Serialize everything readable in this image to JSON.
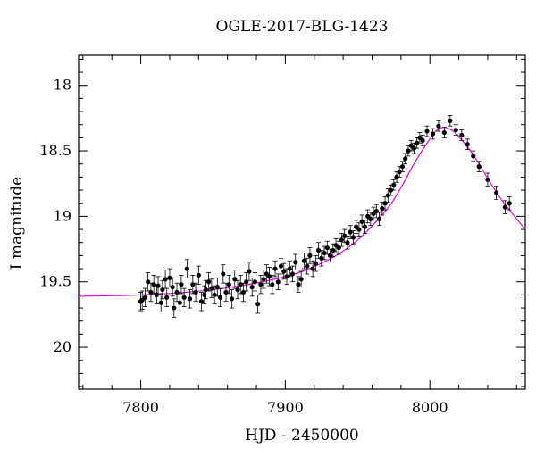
{
  "chart_data": {
    "type": "scatter",
    "title": "OGLE-2017-BLG-1423",
    "xlabel": "HJD - 2450000",
    "ylabel": "I magnitude",
    "xlim": [
      7757,
      8066
    ],
    "ylim": [
      20.32,
      17.77
    ],
    "y_inverted": true,
    "grid": false,
    "xticks": [
      7800,
      7900,
      8000
    ],
    "xtick_labels": [
      "7800",
      "7900",
      "8000"
    ],
    "yticks": [
      18,
      18.5,
      19,
      19.5,
      20
    ],
    "ytick_labels": [
      "18",
      "18.5",
      "19",
      "19.5",
      "20"
    ],
    "colors": {
      "points": "#000000",
      "model": "#e600e6"
    },
    "model": {
      "x": [
        7757,
        7800,
        7850,
        7900,
        7930,
        7950,
        7970,
        7980,
        7990,
        8000,
        8005,
        8010,
        8015,
        8020,
        8030,
        8040,
        8050,
        8066
      ],
      "y": [
        19.61,
        19.6,
        19.56,
        19.46,
        19.33,
        19.18,
        18.95,
        18.78,
        18.58,
        18.41,
        18.34,
        18.32,
        18.34,
        18.39,
        18.53,
        18.71,
        18.88,
        19.1
      ]
    },
    "series": [
      {
        "x": [
          7800,
          7801,
          7803,
          7805,
          7807,
          7809,
          7811,
          7812,
          7814,
          7815,
          7817,
          7818,
          7820,
          7822,
          7823,
          7825,
          7827,
          7828,
          7830,
          7832,
          7834,
          7836,
          7838,
          7840,
          7842,
          7844,
          7845,
          7847,
          7849,
          7851,
          7853,
          7855,
          7857,
          7859,
          7861,
          7863,
          7865,
          7867,
          7869,
          7871,
          7873,
          7875,
          7877,
          7879,
          7881,
          7883,
          7885,
          7887,
          7889,
          7891,
          7893,
          7895,
          7897,
          7899,
          7901,
          7903,
          7905,
          7907,
          7909,
          7911,
          7913,
          7915,
          7917,
          7919,
          7921,
          7923,
          7925,
          7927,
          7929,
          7931,
          7933,
          7935,
          7937,
          7939,
          7941,
          7943,
          7945,
          7947,
          7949,
          7951,
          7953,
          7955,
          7957,
          7959,
          7961,
          7963,
          7965,
          7967,
          7969,
          7971,
          7973,
          7975,
          7977,
          7979,
          7981,
          7983,
          7985,
          7987,
          7989,
          7991,
          7993,
          7995,
          7998,
          8002,
          8006,
          8010,
          8014,
          8018,
          8022,
          8026,
          8030,
          8034,
          8040,
          8046,
          8052,
          8055
        ],
        "y": [
          19.65,
          19.64,
          19.62,
          19.5,
          19.58,
          19.52,
          19.6,
          19.53,
          19.66,
          19.56,
          19.48,
          19.62,
          19.47,
          19.54,
          19.7,
          19.58,
          19.66,
          19.52,
          19.62,
          19.4,
          19.63,
          19.52,
          19.58,
          19.45,
          19.65,
          19.6,
          19.56,
          19.5,
          19.55,
          19.6,
          19.54,
          19.62,
          19.44,
          19.58,
          19.52,
          19.63,
          19.48,
          19.56,
          19.52,
          19.58,
          19.5,
          19.42,
          19.54,
          19.5,
          19.67,
          19.52,
          19.48,
          19.44,
          19.46,
          19.52,
          19.4,
          19.5,
          19.38,
          19.42,
          19.46,
          19.4,
          19.44,
          19.35,
          19.52,
          19.48,
          19.34,
          19.38,
          19.3,
          19.4,
          19.36,
          19.26,
          19.32,
          19.28,
          19.24,
          19.3,
          19.26,
          19.22,
          19.24,
          19.18,
          19.15,
          19.2,
          19.12,
          19.16,
          19.08,
          19.1,
          19.04,
          19.08,
          19.0,
          19.02,
          18.98,
          18.96,
          19.02,
          18.94,
          18.9,
          18.84,
          18.8,
          18.76,
          18.7,
          18.66,
          18.62,
          18.56,
          18.5,
          18.46,
          18.48,
          18.44,
          18.4,
          18.42,
          18.35,
          18.37,
          18.31,
          18.36,
          18.27,
          18.34,
          18.38,
          18.45,
          18.54,
          18.62,
          18.72,
          18.82,
          18.93,
          18.9
        ],
        "error": [
          0.07,
          0.07,
          0.07,
          0.07,
          0.07,
          0.07,
          0.07,
          0.07,
          0.07,
          0.07,
          0.07,
          0.07,
          0.07,
          0.07,
          0.07,
          0.07,
          0.07,
          0.07,
          0.07,
          0.07,
          0.07,
          0.07,
          0.07,
          0.07,
          0.07,
          0.07,
          0.07,
          0.07,
          0.07,
          0.07,
          0.07,
          0.07,
          0.07,
          0.07,
          0.07,
          0.07,
          0.07,
          0.07,
          0.07,
          0.07,
          0.07,
          0.07,
          0.07,
          0.07,
          0.07,
          0.07,
          0.07,
          0.07,
          0.07,
          0.07,
          0.06,
          0.06,
          0.06,
          0.06,
          0.06,
          0.06,
          0.06,
          0.06,
          0.06,
          0.06,
          0.06,
          0.06,
          0.06,
          0.06,
          0.06,
          0.06,
          0.06,
          0.05,
          0.05,
          0.05,
          0.05,
          0.05,
          0.05,
          0.05,
          0.05,
          0.05,
          0.05,
          0.05,
          0.05,
          0.05,
          0.05,
          0.05,
          0.05,
          0.05,
          0.05,
          0.05,
          0.05,
          0.05,
          0.05,
          0.05,
          0.04,
          0.04,
          0.04,
          0.04,
          0.04,
          0.04,
          0.04,
          0.04,
          0.04,
          0.04,
          0.04,
          0.04,
          0.04,
          0.04,
          0.04,
          0.04,
          0.04,
          0.04,
          0.04,
          0.04,
          0.04,
          0.04,
          0.05,
          0.05,
          0.05,
          0.05
        ]
      }
    ]
  }
}
